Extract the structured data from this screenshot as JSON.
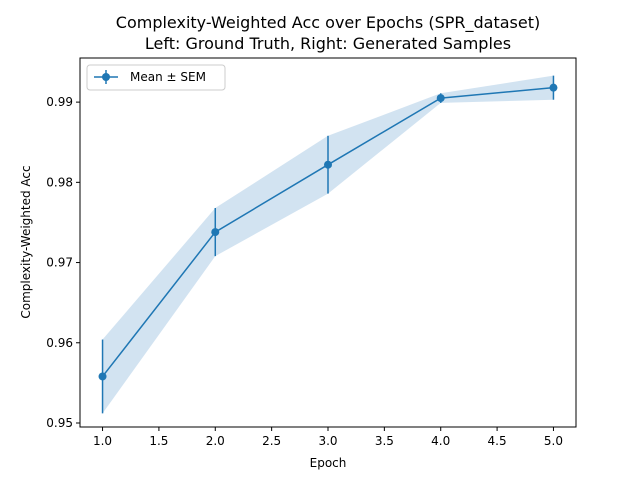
{
  "chart_data": {
    "type": "line",
    "title": "Complexity-Weighted Acc over Epochs (SPR_dataset)",
    "subtitle": "Left: Ground Truth, Right: Generated Samples",
    "xlabel": "Epoch",
    "ylabel": "Complexity-Weighted Acc",
    "xlim": [
      0.8,
      5.2
    ],
    "ylim": [
      0.9495,
      0.9955
    ],
    "xticks": [
      1.0,
      1.5,
      2.0,
      2.5,
      3.0,
      3.5,
      4.0,
      4.5,
      5.0
    ],
    "xtick_labels": [
      "1.0",
      "1.5",
      "2.0",
      "2.5",
      "3.0",
      "3.5",
      "4.0",
      "4.5",
      "5.0"
    ],
    "yticks": [
      0.95,
      0.96,
      0.97,
      0.98,
      0.99
    ],
    "ytick_labels": [
      "0.95",
      "0.96",
      "0.97",
      "0.98",
      "0.99"
    ],
    "grid": false,
    "legend_position": "top-left",
    "series": [
      {
        "name": "Mean ± SEM",
        "color": "#1f77b4",
        "band_color": "#a6c8e4",
        "x": [
          1,
          2,
          3,
          4,
          5
        ],
        "y": [
          0.9558,
          0.9738,
          0.9822,
          0.9905,
          0.9918
        ],
        "sem": [
          0.0046,
          0.003,
          0.0036,
          0.0006,
          0.0015
        ]
      }
    ]
  }
}
